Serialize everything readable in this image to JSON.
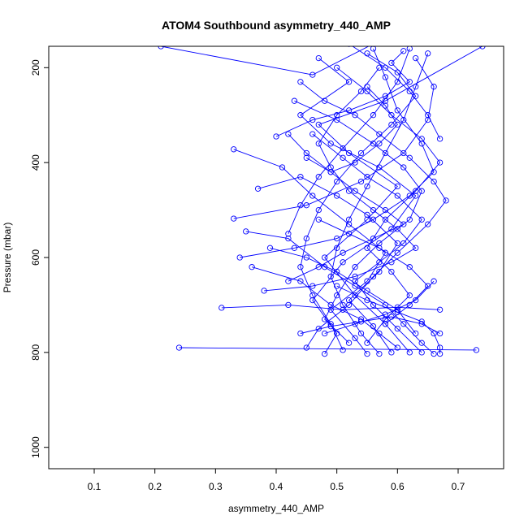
{
  "chart_data": {
    "type": "scatter",
    "title": "ATOM4 Southbound asymmetry_440_AMP",
    "xlabel": "asymmetry_440_AMP",
    "ylabel": "Pressure (mbar)",
    "xlim": [
      0.025,
      0.775
    ],
    "ylim": [
      1045,
      155
    ],
    "y_reversed": true,
    "x_ticks": [
      "0.1",
      "0.2",
      "0.3",
      "0.4",
      "0.5",
      "0.6",
      "0.7"
    ],
    "y_ticks": [
      "200",
      "400",
      "600",
      "800",
      "1000"
    ],
    "grid": false,
    "legend": "none",
    "series_color": "#0000ff",
    "marker": "open-circle",
    "series": [
      {
        "points": [
          [
            0.21,
            155
          ],
          [
            0.46,
            215
          ],
          [
            0.56,
            150
          ]
        ]
      },
      {
        "points": [
          [
            0.74,
            155
          ],
          [
            0.58,
            270
          ],
          [
            0.47,
            320
          ],
          [
            0.52,
            380
          ],
          [
            0.6,
            450
          ],
          [
            0.55,
            520
          ],
          [
            0.48,
            600
          ],
          [
            0.53,
            680
          ],
          [
            0.58,
            740
          ],
          [
            0.62,
            800
          ]
        ]
      },
      {
        "points": [
          [
            0.47,
            180
          ],
          [
            0.52,
            230
          ],
          [
            0.44,
            300
          ],
          [
            0.49,
            360
          ],
          [
            0.57,
            410
          ],
          [
            0.63,
            470
          ],
          [
            0.59,
            540
          ],
          [
            0.51,
            610
          ],
          [
            0.46,
            690
          ],
          [
            0.5,
            760
          ],
          [
            0.48,
            803
          ]
        ]
      },
      {
        "points": [
          [
            0.33,
            372
          ],
          [
            0.41,
            410
          ],
          [
            0.46,
            470
          ],
          [
            0.52,
            530
          ],
          [
            0.58,
            590
          ],
          [
            0.55,
            650
          ],
          [
            0.49,
            710
          ],
          [
            0.53,
            770
          ],
          [
            0.55,
            803
          ]
        ]
      },
      {
        "points": [
          [
            0.24,
            790
          ],
          [
            0.73,
            795
          ]
        ]
      },
      {
        "points": [
          [
            0.31,
            706
          ],
          [
            0.42,
            700
          ],
          [
            0.51,
            710
          ],
          [
            0.6,
            705
          ],
          [
            0.67,
            710
          ]
        ]
      },
      {
        "points": [
          [
            0.33,
            518
          ],
          [
            0.45,
            490
          ],
          [
            0.54,
            440
          ],
          [
            0.61,
            380
          ],
          [
            0.65,
            310
          ],
          [
            0.66,
            240
          ],
          [
            0.63,
            180
          ]
        ]
      },
      {
        "points": [
          [
            0.34,
            600
          ],
          [
            0.43,
            580
          ],
          [
            0.5,
            560
          ],
          [
            0.56,
            520
          ],
          [
            0.62,
            470
          ],
          [
            0.66,
            420
          ],
          [
            0.64,
            360
          ],
          [
            0.6,
            290
          ],
          [
            0.58,
            220
          ],
          [
            0.56,
            160
          ]
        ]
      },
      {
        "points": [
          [
            0.37,
            455
          ],
          [
            0.44,
            430
          ],
          [
            0.5,
            470
          ],
          [
            0.55,
            510
          ],
          [
            0.6,
            570
          ],
          [
            0.57,
            630
          ],
          [
            0.52,
            690
          ],
          [
            0.56,
            745
          ],
          [
            0.59,
            800
          ]
        ]
      },
      {
        "points": [
          [
            0.4,
            345
          ],
          [
            0.46,
            310
          ],
          [
            0.52,
            290
          ],
          [
            0.58,
            260
          ],
          [
            0.62,
            230
          ],
          [
            0.59,
            190
          ],
          [
            0.61,
            165
          ]
        ]
      },
      {
        "points": [
          [
            0.35,
            545
          ],
          [
            0.42,
            560
          ],
          [
            0.48,
            620
          ],
          [
            0.53,
            660
          ],
          [
            0.58,
            700
          ],
          [
            0.61,
            740
          ],
          [
            0.64,
            780
          ],
          [
            0.66,
            803
          ]
        ]
      },
      {
        "points": [
          [
            0.36,
            620
          ],
          [
            0.44,
            650
          ],
          [
            0.49,
            700
          ],
          [
            0.54,
            730
          ],
          [
            0.57,
            760
          ],
          [
            0.6,
            790
          ]
        ]
      },
      {
        "points": [
          [
            0.44,
            230
          ],
          [
            0.48,
            270
          ],
          [
            0.53,
            300
          ],
          [
            0.57,
            340
          ],
          [
            0.62,
            390
          ],
          [
            0.66,
            440
          ],
          [
            0.68,
            480
          ],
          [
            0.65,
            530
          ],
          [
            0.6,
            590
          ],
          [
            0.56,
            640
          ],
          [
            0.52,
            700
          ],
          [
            0.47,
            750
          ],
          [
            0.45,
            790
          ]
        ]
      },
      {
        "points": [
          [
            0.5,
            200
          ],
          [
            0.55,
            250
          ],
          [
            0.59,
            300
          ],
          [
            0.64,
            350
          ],
          [
            0.67,
            400
          ],
          [
            0.63,
            460
          ],
          [
            0.58,
            520
          ],
          [
            0.55,
            580
          ],
          [
            0.59,
            630
          ],
          [
            0.62,
            680
          ],
          [
            0.58,
            730
          ],
          [
            0.55,
            780
          ]
        ]
      },
      {
        "points": [
          [
            0.42,
            650
          ],
          [
            0.47,
            620
          ],
          [
            0.51,
            590
          ],
          [
            0.56,
            560
          ],
          [
            0.61,
            530
          ],
          [
            0.58,
            500
          ],
          [
            0.53,
            460
          ],
          [
            0.49,
            420
          ],
          [
            0.45,
            380
          ],
          [
            0.42,
            340
          ]
        ]
      },
      {
        "points": [
          [
            0.39,
            580
          ],
          [
            0.45,
            600
          ],
          [
            0.5,
            630
          ],
          [
            0.55,
            670
          ],
          [
            0.6,
            710
          ],
          [
            0.63,
            760
          ]
        ]
      },
      {
        "points": [
          [
            0.43,
            270
          ],
          [
            0.5,
            310
          ],
          [
            0.56,
            360
          ],
          [
            0.61,
            410
          ],
          [
            0.64,
            460
          ],
          [
            0.62,
            520
          ],
          [
            0.57,
            570
          ],
          [
            0.53,
            620
          ],
          [
            0.5,
            680
          ],
          [
            0.48,
            730
          ],
          [
            0.52,
            780
          ]
        ]
      },
      {
        "points": [
          [
            0.55,
            170
          ],
          [
            0.6,
            210
          ],
          [
            0.63,
            260
          ],
          [
            0.59,
            320
          ],
          [
            0.54,
            380
          ],
          [
            0.5,
            440
          ],
          [
            0.47,
            500
          ],
          [
            0.45,
            560
          ],
          [
            0.44,
            620
          ],
          [
            0.46,
            680
          ],
          [
            0.49,
            740
          ],
          [
            0.51,
            795
          ]
        ]
      },
      {
        "points": [
          [
            0.46,
            340
          ],
          [
            0.51,
            390
          ],
          [
            0.55,
            430
          ],
          [
            0.6,
            470
          ],
          [
            0.64,
            520
          ],
          [
            0.61,
            570
          ],
          [
            0.57,
            610
          ],
          [
            0.53,
            650
          ],
          [
            0.56,
            700
          ],
          [
            0.6,
            750
          ],
          [
            0.64,
            800
          ]
        ]
      },
      {
        "points": [
          [
            0.38,
            670
          ],
          [
            0.46,
            660
          ],
          [
            0.53,
            640
          ],
          [
            0.59,
            610
          ],
          [
            0.63,
            580
          ],
          [
            0.6,
            540
          ],
          [
            0.56,
            500
          ],
          [
            0.52,
            460
          ],
          [
            0.49,
            410
          ],
          [
            0.47,
            360
          ],
          [
            0.5,
            300
          ],
          [
            0.54,
            250
          ],
          [
            0.57,
            200
          ]
        ]
      },
      {
        "points": [
          [
            0.48,
            760
          ],
          [
            0.53,
            740
          ],
          [
            0.58,
            720
          ],
          [
            0.63,
            690
          ],
          [
            0.66,
            650
          ]
        ]
      },
      {
        "points": [
          [
            0.44,
            760
          ],
          [
            0.49,
            745
          ],
          [
            0.54,
            735
          ],
          [
            0.59,
            725
          ],
          [
            0.64,
            740
          ],
          [
            0.67,
            760
          ]
        ]
      },
      {
        "points": [
          [
            0.62,
            160
          ],
          [
            0.6,
            230
          ],
          [
            0.56,
            300
          ],
          [
            0.51,
            370
          ],
          [
            0.47,
            430
          ],
          [
            0.44,
            490
          ],
          [
            0.42,
            550
          ]
        ]
      },
      {
        "points": [
          [
            0.65,
            170
          ],
          [
            0.63,
            240
          ],
          [
            0.61,
            310
          ],
          [
            0.58,
            380
          ],
          [
            0.55,
            450
          ],
          [
            0.52,
            520
          ],
          [
            0.5,
            580
          ],
          [
            0.49,
            640
          ],
          [
            0.51,
            700
          ],
          [
            0.54,
            760
          ],
          [
            0.57,
            803
          ]
        ]
      },
      {
        "points": [
          [
            0.45,
            390
          ],
          [
            0.49,
            420
          ],
          [
            0.53,
            400
          ],
          [
            0.57,
            360
          ],
          [
            0.6,
            320
          ],
          [
            0.58,
            280
          ],
          [
            0.55,
            240
          ]
        ]
      },
      {
        "points": [
          [
            0.47,
            520
          ],
          [
            0.52,
            550
          ],
          [
            0.57,
            580
          ],
          [
            0.62,
            620
          ],
          [
            0.65,
            660
          ],
          [
            0.62,
            700
          ],
          [
            0.58,
            740
          ]
        ]
      },
      {
        "points": [
          [
            0.52,
            150
          ],
          [
            0.58,
            200
          ],
          [
            0.62,
            250
          ],
          [
            0.65,
            300
          ],
          [
            0.67,
            350
          ]
        ]
      },
      {
        "points": [
          [
            0.5,
            660
          ],
          [
            0.55,
            690
          ],
          [
            0.6,
            715
          ],
          [
            0.64,
            735
          ],
          [
            0.66,
            760
          ],
          [
            0.67,
            790
          ],
          [
            0.67,
            803
          ]
        ]
      }
    ]
  }
}
